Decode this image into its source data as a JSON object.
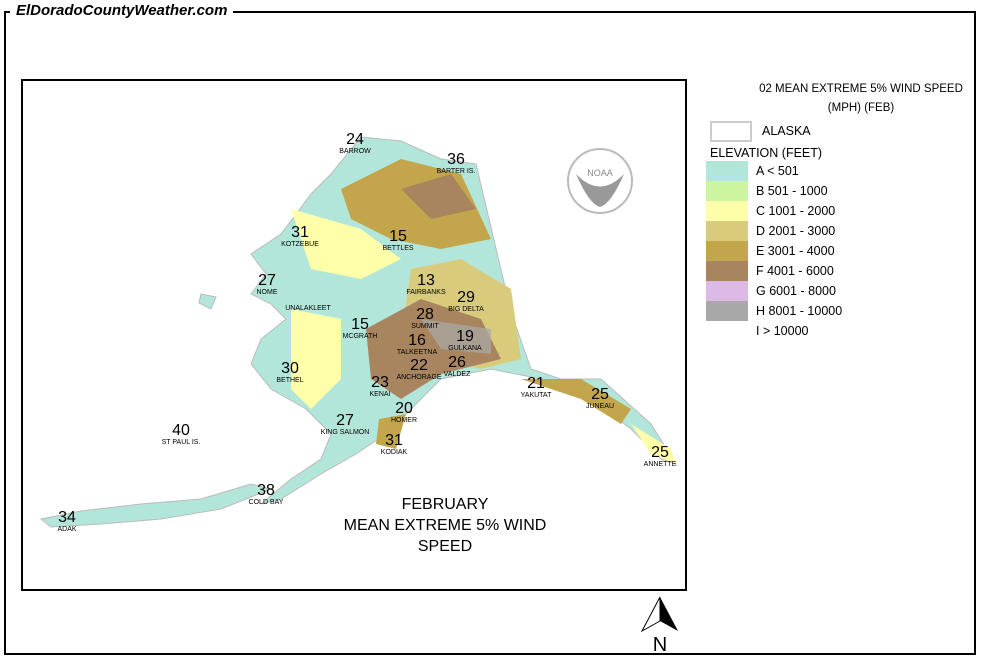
{
  "site": "ElDoradoCountyWeather.com",
  "map_title": [
    "FEBRUARY",
    "MEAN EXTREME 5% WIND SPEED"
  ],
  "legend": {
    "title_line1": "02 MEAN EXTREME 5% WIND SPEED",
    "title_line2": "(MPH) (FEB)",
    "boundary_label": "ALASKA",
    "elevation_heading": "ELEVATION (FEET)",
    "classes": [
      {
        "label": "A < 501",
        "color": "#b3e6da"
      },
      {
        "label": "B 501 - 1000",
        "color": "#ccf59f"
      },
      {
        "label": "C 1001 - 2000",
        "color": "#ffffaa"
      },
      {
        "label": "D 2001 - 3000",
        "color": "#d9cb7c"
      },
      {
        "label": "E 3001 - 4000",
        "color": "#c3a64b"
      },
      {
        "label": "F 4001 - 6000",
        "color": "#a8855f"
      },
      {
        "label": "G 6001 - 8000",
        "color": "#dcb9e6"
      },
      {
        "label": "H 8001 - 10000",
        "color": "#a8a8a8"
      },
      {
        "label": "I > 10000",
        "color": "#ffffff"
      }
    ]
  },
  "stations": [
    {
      "name": "BARROW",
      "value": "24"
    },
    {
      "name": "BARTER IS.",
      "value": "36"
    },
    {
      "name": "KOTZEBUE",
      "value": "31"
    },
    {
      "name": "BETTLES",
      "value": "15"
    },
    {
      "name": "NOME",
      "value": "27"
    },
    {
      "name": "FAIRBANKS",
      "value": "13"
    },
    {
      "name": "BIG DELTA",
      "value": "29"
    },
    {
      "name": "UNALAKLEET",
      "value": ""
    },
    {
      "name": "MCGRATH",
      "value": "15"
    },
    {
      "name": "SUMMIT",
      "value": "28"
    },
    {
      "name": "TALKEETNA",
      "value": "16"
    },
    {
      "name": "GULKANA",
      "value": "19"
    },
    {
      "name": "BETHEL",
      "value": "30"
    },
    {
      "name": "ANCHORAGE",
      "value": "22"
    },
    {
      "name": "VALDEZ",
      "value": "26"
    },
    {
      "name": "KENAI",
      "value": "23"
    },
    {
      "name": "HOMER",
      "value": "20"
    },
    {
      "name": "YAKUTAT",
      "value": "21"
    },
    {
      "name": "JUNEAU",
      "value": "25"
    },
    {
      "name": "KING SALMON",
      "value": "27"
    },
    {
      "name": "KODIAK",
      "value": "31"
    },
    {
      "name": "ST PAUL IS.",
      "value": "40"
    },
    {
      "name": "COLD BAY",
      "value": "38"
    },
    {
      "name": "ADAK",
      "value": "34"
    },
    {
      "name": "ANNETTE",
      "value": "25"
    }
  ],
  "logo_text": "NOAA",
  "north_label": "N"
}
